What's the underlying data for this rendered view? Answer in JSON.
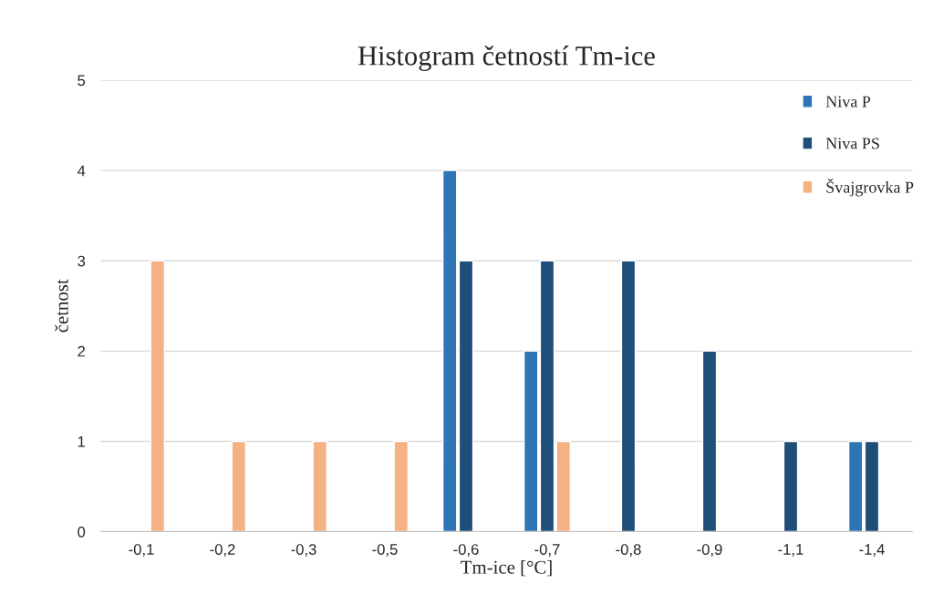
{
  "chart_data": {
    "type": "bar",
    "title": "Histogram četností Tm-ice",
    "xlabel": "Tm-ice [°C]",
    "ylabel": "četnost",
    "categories": [
      "-0,1",
      "-0,2",
      "-0,3",
      "-0,5",
      "-0,6",
      "-0,7",
      "-0,8",
      "-0,9",
      "-1,1",
      "-1,4"
    ],
    "series": [
      {
        "name": "Niva P",
        "color": "#2e75b6",
        "values": [
          null,
          null,
          null,
          null,
          4,
          2,
          null,
          null,
          null,
          1
        ]
      },
      {
        "name": "Niva PS",
        "color": "#1f4e79",
        "values": [
          null,
          null,
          null,
          null,
          3,
          3,
          3,
          2,
          1,
          1
        ]
      },
      {
        "name": "Švajgrovka P",
        "color": "#f4b183",
        "values": [
          3,
          1,
          1,
          1,
          null,
          1,
          null,
          null,
          null,
          null
        ]
      }
    ],
    "ylim": [
      0,
      5
    ],
    "yticks": [
      0,
      1,
      2,
      3,
      4,
      5
    ],
    "grid": "y",
    "legend": "top right"
  }
}
